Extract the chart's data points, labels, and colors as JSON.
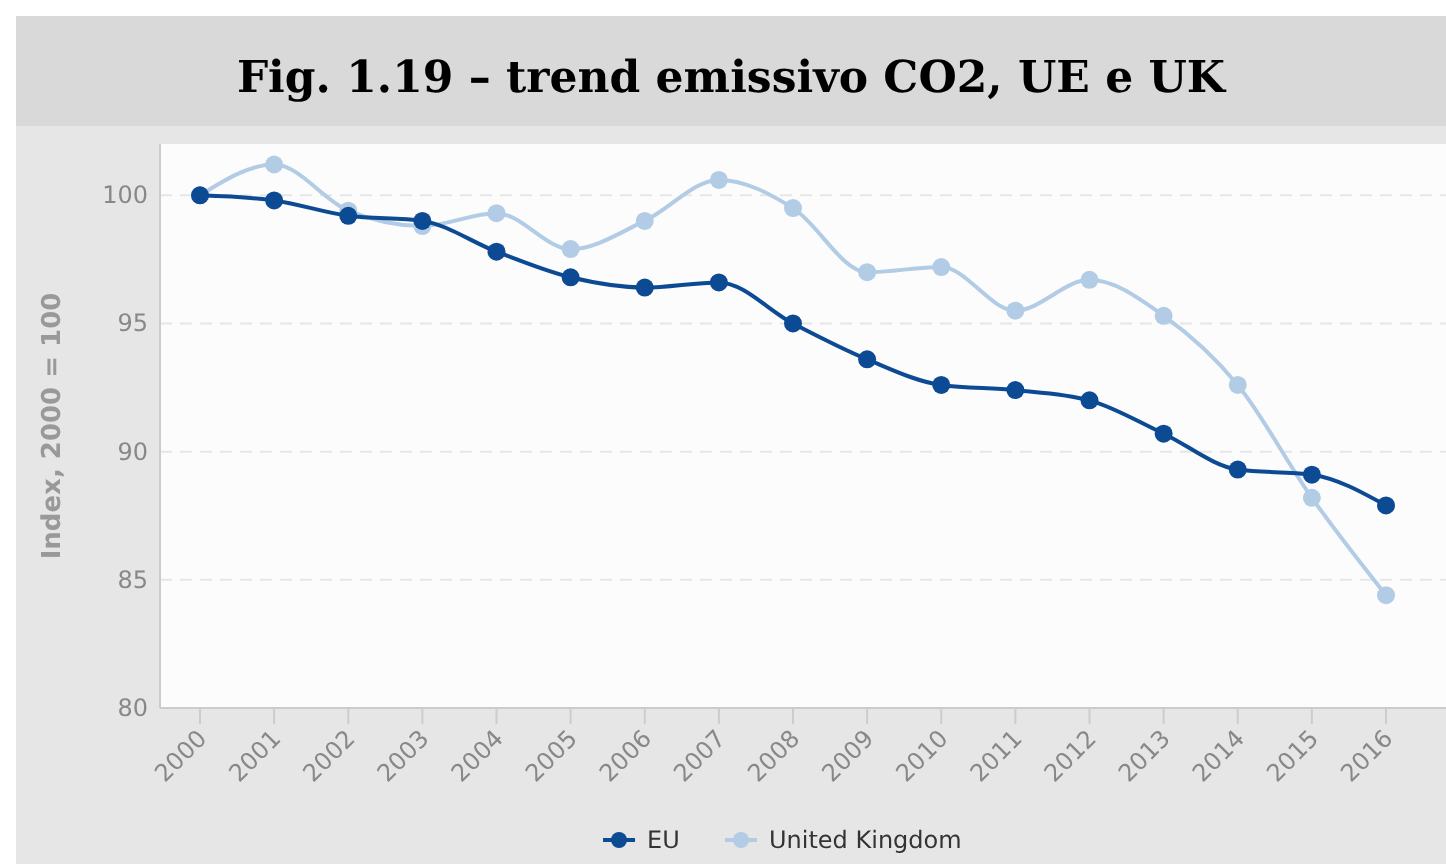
{
  "chart_data": {
    "type": "line",
    "title": "Fig. 1.19 – trend emissivo CO2, UE e UK",
    "ylabel": "Index, 2000 = 100",
    "categories": [
      "2000",
      "2001",
      "2002",
      "2003",
      "2004",
      "2005",
      "2006",
      "2007",
      "2008",
      "2009",
      "2010",
      "2011",
      "2012",
      "2013",
      "2014",
      "2015",
      "2016"
    ],
    "series": [
      {
        "name": "EU",
        "color": "#0d4a94",
        "values": [
          100,
          99.8,
          99.2,
          99.0,
          97.8,
          96.8,
          96.4,
          96.6,
          95.0,
          93.6,
          92.6,
          92.4,
          92.0,
          90.7,
          89.3,
          89.1,
          87.9
        ]
      },
      {
        "name": "United Kingdom",
        "color": "#b3cce6",
        "values": [
          100,
          101.2,
          99.4,
          98.8,
          99.3,
          97.9,
          99.0,
          100.6,
          99.5,
          97.0,
          97.2,
          95.5,
          96.7,
          95.3,
          92.6,
          88.2,
          84.4
        ]
      }
    ],
    "ylim": [
      80,
      102
    ],
    "yticks": [
      80,
      85,
      90,
      95,
      100
    ],
    "grid": "y",
    "legend": "bottom",
    "marker": "circle",
    "line_style": "solid"
  }
}
